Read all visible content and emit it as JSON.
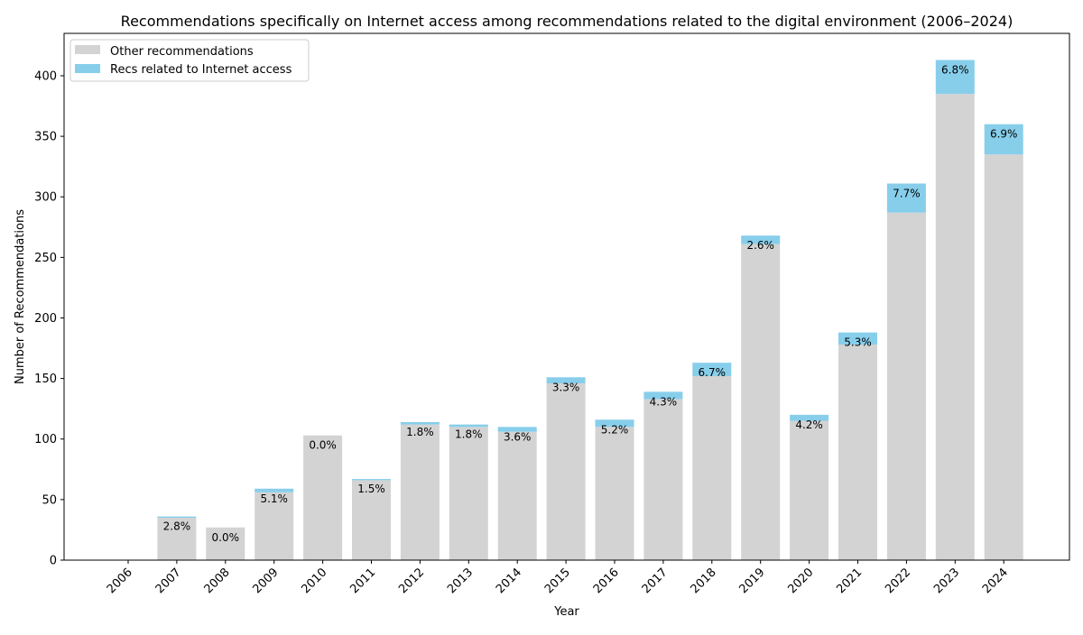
{
  "chart_data": {
    "type": "bar",
    "stacked": true,
    "title": "Recommendations specifically on Internet access among recommendations related to the digital environment (2006–2024)",
    "xlabel": "Year",
    "ylabel": "Number of Recommendations",
    "ylim": [
      0,
      435
    ],
    "yticks": [
      0,
      50,
      100,
      150,
      200,
      250,
      300,
      350,
      400
    ],
    "grid": false,
    "legend_position": "top-left",
    "categories": [
      "2006",
      "2007",
      "2008",
      "2009",
      "2010",
      "2011",
      "2012",
      "2013",
      "2014",
      "2015",
      "2016",
      "2017",
      "2018",
      "2019",
      "2020",
      "2021",
      "2022",
      "2023",
      "2024"
    ],
    "series": [
      {
        "name": "Other recommendations",
        "color": "#d3d3d3",
        "values": [
          0,
          35,
          27,
          56,
          103,
          66,
          112,
          110,
          106,
          146,
          110,
          133,
          152,
          261,
          115,
          178,
          287,
          385,
          335
        ]
      },
      {
        "name": "Recs related to Internet access",
        "color": "#87ceeb",
        "values": [
          0,
          1,
          0,
          3,
          0,
          1,
          2,
          2,
          4,
          5,
          6,
          6,
          11,
          7,
          5,
          10,
          24,
          28,
          25
        ]
      }
    ],
    "bar_labels": [
      "",
      "2.8%",
      "0.0%",
      "5.1%",
      "0.0%",
      "1.5%",
      "1.8%",
      "1.8%",
      "3.6%",
      "3.3%",
      "5.2%",
      "4.3%",
      "6.7%",
      "2.6%",
      "4.2%",
      "5.3%",
      "7.7%",
      "6.8%",
      "6.9%"
    ]
  }
}
